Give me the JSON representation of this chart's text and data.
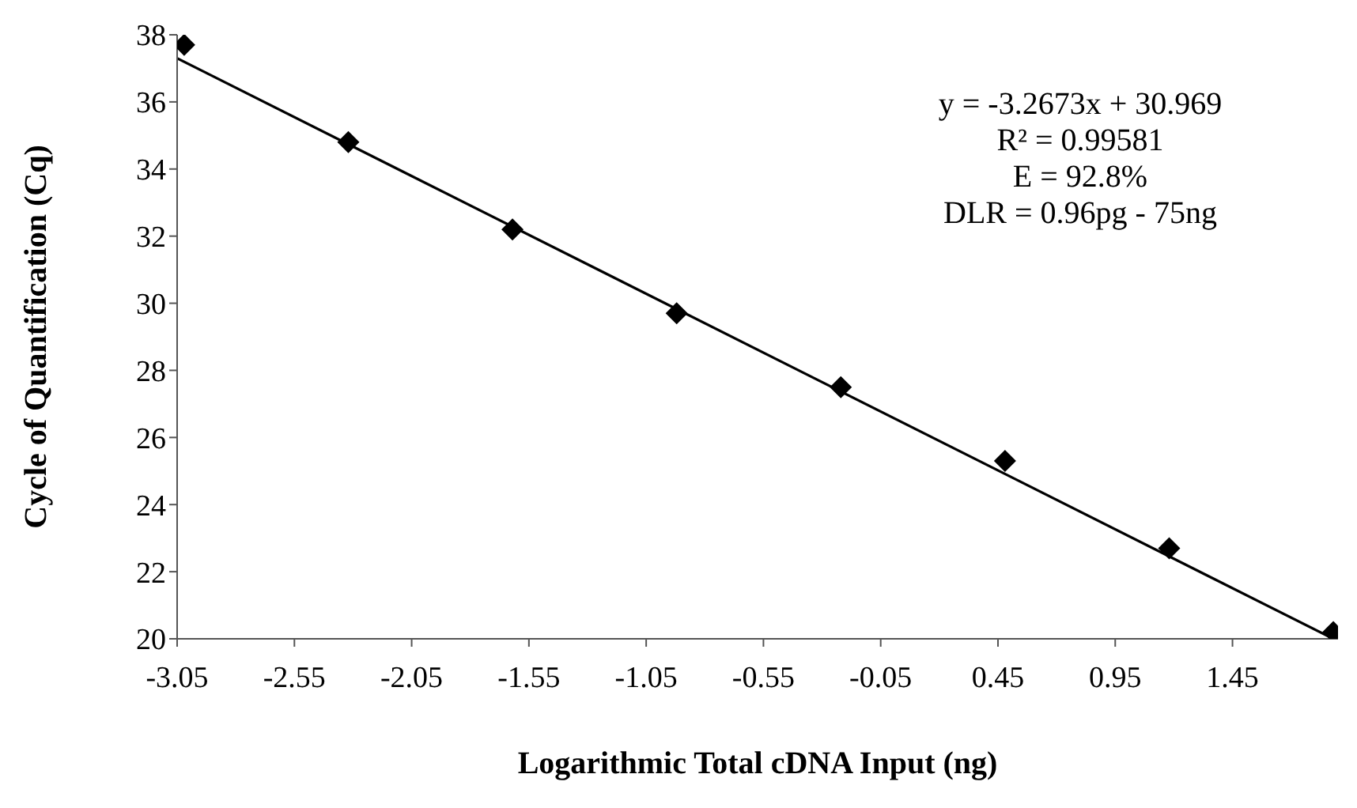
{
  "chart_data": {
    "type": "scatter",
    "xlabel": "Logarithmic Total cDNA Input (ng)",
    "ylabel": "Cycle of Quantification (Cq)",
    "xlim": [
      -3.05,
      1.9
    ],
    "xticks": [
      -3.05,
      -2.55,
      -2.05,
      -1.55,
      -1.05,
      -0.55,
      -0.05,
      0.45,
      0.95,
      1.45
    ],
    "ylim": [
      20,
      38
    ],
    "yticks": [
      20,
      22,
      24,
      26,
      28,
      30,
      32,
      34,
      36,
      38
    ],
    "grid": false,
    "series": [
      {
        "color": "#000000",
        "marker": "diamond",
        "x": [
          -3.02,
          -2.32,
          -1.62,
          -0.92,
          -0.22,
          0.48,
          1.18,
          1.88
        ],
        "values": [
          37.7,
          34.8,
          32.2,
          29.7,
          27.5,
          25.3,
          22.7,
          20.2
        ]
      },
      {
        "type": "line",
        "color": "#000000",
        "marker": "none",
        "line_style": "solid",
        "x": [
          -3.05,
          1.88
        ],
        "values": [
          37.3,
          20.0
        ]
      }
    ],
    "annotations": [
      "y = -3.2673x + 30.969",
      "R² = 0.99581",
      "E = 92.8%",
      "DLR = 0.96pg - 75ng"
    ]
  }
}
